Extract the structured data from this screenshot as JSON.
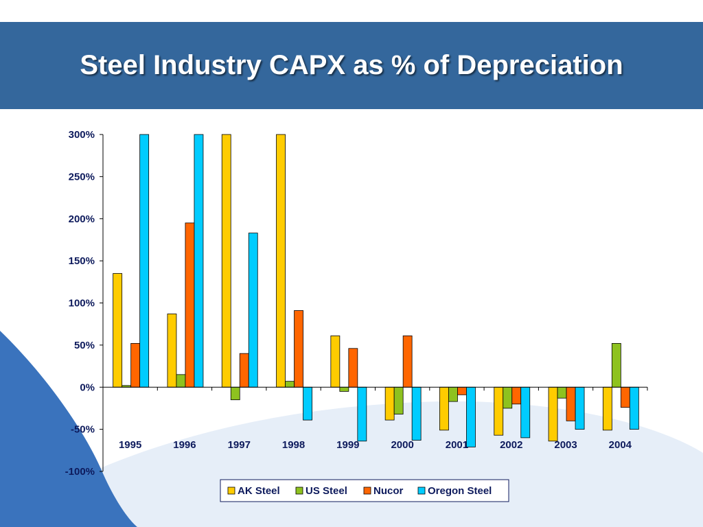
{
  "slide": {
    "title": "Steel Industry CAPX as % of Depreciation",
    "colors": {
      "title_bar": "#34679c",
      "title_text": "#ffffff",
      "axis_text": "#0d1a5c"
    }
  },
  "chart_data": {
    "type": "bar",
    "title": "",
    "xlabel": "",
    "ylabel": "",
    "categories": [
      "1995",
      "1996",
      "1997",
      "1998",
      "1999",
      "2000",
      "2001",
      "2002",
      "2003",
      "2004"
    ],
    "ylim": [
      -100,
      300
    ],
    "yticks": [
      300,
      250,
      200,
      150,
      100,
      50,
      0,
      -50,
      -100
    ],
    "ytick_labels": [
      "300%",
      "250%",
      "200%",
      "150%",
      "100%",
      "50%",
      "0%",
      "-50%",
      "-100%"
    ],
    "grid": false,
    "legend_position": "bottom",
    "series": [
      {
        "name": "AK Steel",
        "color": "#ffcc00",
        "values": [
          135,
          87,
          300,
          300,
          61,
          -39,
          -51,
          -57,
          -64,
          -51
        ]
      },
      {
        "name": "US Steel",
        "color": "#8ec21f",
        "values": [
          2,
          15,
          -15,
          7,
          -5,
          -32,
          -17,
          -25,
          -13,
          52
        ]
      },
      {
        "name": "Nucor",
        "color": "#ff6600",
        "values": [
          52,
          195,
          40,
          91,
          46,
          61,
          -9,
          -20,
          -40,
          -24
        ]
      },
      {
        "name": "Oregon Steel",
        "color": "#00ccff",
        "values": [
          300,
          300,
          183,
          -39,
          -64,
          -63,
          -71,
          -60,
          -50,
          -50
        ]
      }
    ]
  }
}
